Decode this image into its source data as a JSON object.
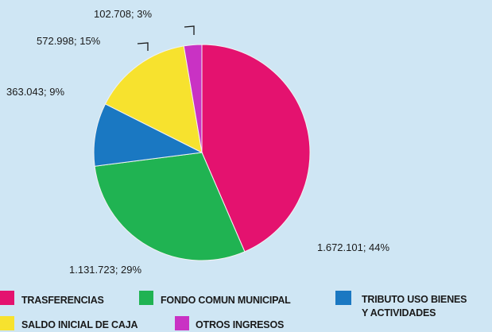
{
  "chart_data": {
    "type": "pie",
    "title": "",
    "slices": [
      {
        "name": "TRASFERENCIAS",
        "value": 1672101,
        "label": "1.672.101; 44%",
        "color": "#e4126f"
      },
      {
        "name": "FONDO COMUN MUNICIPAL",
        "value": 1131723,
        "label": "1.131.723; 29%",
        "color": "#20b352"
      },
      {
        "name": "TRIBUTO USO BIENES Y ACTIVIDADES",
        "value": 363043,
        "label": "363.043; 9%",
        "color": "#1a78c2"
      },
      {
        "name": "SALDO INICIAL DE CAJA",
        "value": 572998,
        "label": "572.998; 15%",
        "color": "#f7e22e"
      },
      {
        "name": "OTROS INGRESOS",
        "value": 102708,
        "label": "102.708; 3%",
        "color": "#c932c4"
      }
    ],
    "legend": {
      "placement": "bottom",
      "items": [
        {
          "text": "TRASFERENCIAS",
          "color": "#e4126f"
        },
        {
          "text": "FONDO COMUN MUNICIPAL",
          "color": "#20b352"
        },
        {
          "text": "TRIBUTO USO BIENES",
          "text2": "Y ACTIVIDADES",
          "color": "#1a78c2"
        },
        {
          "text": "SALDO INICIAL DE CAJA",
          "color": "#f7e22e"
        },
        {
          "text": "OTROS INGRESOS",
          "color": "#c932c4"
        }
      ]
    }
  }
}
